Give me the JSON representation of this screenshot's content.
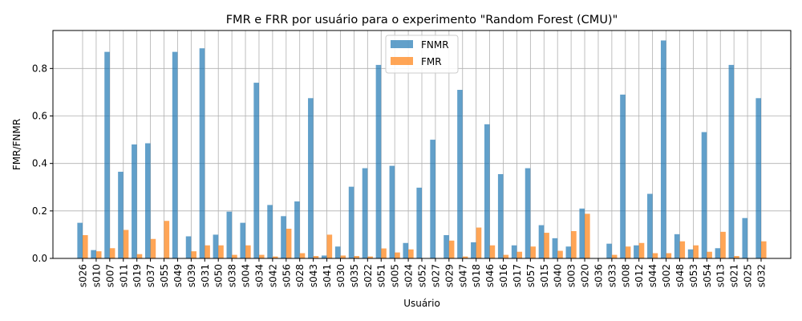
{
  "chart_data": {
    "type": "bar",
    "title": "FMR e FRR por usuário para o experimento \"Random Forest (CMU)\"",
    "xlabel": "Usuário",
    "ylabel": "FMR/FNMR",
    "ylim": [
      0,
      0.96
    ],
    "yticks": [
      "0.0",
      "0.2",
      "0.4",
      "0.6",
      "0.8"
    ],
    "grid": true,
    "legend_position": "top-center",
    "categories": [
      "s026",
      "s010",
      "s007",
      "s011",
      "s019",
      "s037",
      "s055",
      "s049",
      "s039",
      "s031",
      "s050",
      "s038",
      "s004",
      "s034",
      "s042",
      "s056",
      "s028",
      "s043",
      "s041",
      "s030",
      "s035",
      "s022",
      "s051",
      "s005",
      "s024",
      "s052",
      "s027",
      "s029",
      "s047",
      "s018",
      "s046",
      "s016",
      "s017",
      "s057",
      "s015",
      "s040",
      "s003",
      "s020",
      "s036",
      "s033",
      "s008",
      "s012",
      "s044",
      "s002",
      "s048",
      "s053",
      "s054",
      "s013",
      "s021",
      "s025",
      "s032"
    ],
    "series": [
      {
        "name": "FNMR",
        "color": "#1f77b4",
        "values": [
          0.15,
          0.035,
          0.87,
          0.365,
          0.48,
          0.485,
          0.0,
          0.87,
          0.093,
          0.885,
          0.1,
          0.197,
          0.15,
          0.74,
          0.225,
          0.178,
          0.24,
          0.675,
          0.012,
          0.05,
          0.302,
          0.38,
          0.815,
          0.39,
          0.065,
          0.298,
          0.5,
          0.098,
          0.71,
          0.068,
          0.565,
          0.355,
          0.055,
          0.38,
          0.14,
          0.085,
          0.05,
          0.21,
          0.0,
          0.062,
          0.69,
          0.055,
          0.272,
          0.918,
          0.102,
          0.038,
          0.532,
          0.043,
          0.815,
          0.17,
          0.675
        ]
      },
      {
        "name": "FMR",
        "color": "#ff7f0e",
        "values": [
          0.098,
          0.03,
          0.043,
          0.12,
          0.018,
          0.082,
          0.158,
          0.0,
          0.03,
          0.055,
          0.055,
          0.015,
          0.055,
          0.015,
          0.008,
          0.125,
          0.022,
          0.01,
          0.1,
          0.012,
          0.01,
          0.008,
          0.042,
          0.025,
          0.038,
          0.0,
          0.0,
          0.075,
          0.008,
          0.13,
          0.055,
          0.015,
          0.028,
          0.05,
          0.108,
          0.032,
          0.115,
          0.188,
          0.0,
          0.015,
          0.05,
          0.065,
          0.022,
          0.022,
          0.072,
          0.055,
          0.028,
          0.112,
          0.01,
          0.0,
          0.072
        ]
      }
    ]
  }
}
